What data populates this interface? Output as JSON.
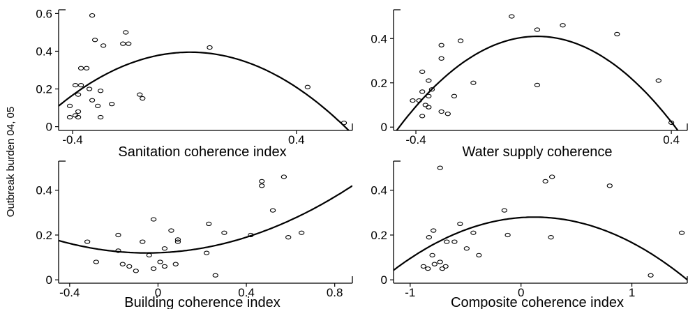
{
  "figure": {
    "ylabel": "Outbreak burden 04, 05"
  },
  "chart_data": [
    {
      "type": "scatter",
      "xlabel": "Sanitation coherence index",
      "xlim": [
        -0.45,
        0.6
      ],
      "ylim": [
        -0.02,
        0.62
      ],
      "xticks": [
        -0.4,
        0.4
      ],
      "xtick_labels": [
        "-0.4",
        "0.4"
      ],
      "yticks": [
        0,
        0.2,
        0.4,
        0.6
      ],
      "ytick_labels": [
        "0",
        "0.2",
        "0.4",
        "0.6"
      ],
      "points": [
        {
          "x": -0.33,
          "y": 0.59
        },
        {
          "x": -0.32,
          "y": 0.46
        },
        {
          "x": -0.29,
          "y": 0.43
        },
        {
          "x": -0.21,
          "y": 0.5
        },
        {
          "x": -0.22,
          "y": 0.44
        },
        {
          "x": -0.2,
          "y": 0.44
        },
        {
          "x": -0.37,
          "y": 0.31
        },
        {
          "x": -0.35,
          "y": 0.31
        },
        {
          "x": -0.39,
          "y": 0.22
        },
        {
          "x": -0.37,
          "y": 0.22
        },
        {
          "x": -0.34,
          "y": 0.2
        },
        {
          "x": -0.3,
          "y": 0.19
        },
        {
          "x": -0.38,
          "y": 0.17
        },
        {
          "x": -0.33,
          "y": 0.14
        },
        {
          "x": -0.31,
          "y": 0.11
        },
        {
          "x": -0.41,
          "y": 0.11
        },
        {
          "x": -0.38,
          "y": 0.08
        },
        {
          "x": -0.39,
          "y": 0.06
        },
        {
          "x": -0.41,
          "y": 0.05
        },
        {
          "x": -0.38,
          "y": 0.05
        },
        {
          "x": -0.3,
          "y": 0.05
        },
        {
          "x": -0.26,
          "y": 0.12
        },
        {
          "x": -0.16,
          "y": 0.17
        },
        {
          "x": -0.15,
          "y": 0.15
        },
        {
          "x": 0.09,
          "y": 0.42
        },
        {
          "x": 0.44,
          "y": 0.21
        },
        {
          "x": 0.57,
          "y": 0.02
        }
      ],
      "curve": {
        "vertex_x": 0.02,
        "vertex_y": 0.395,
        "through_x": 0.58,
        "through_y": -0.01
      }
    },
    {
      "type": "scatter",
      "xlabel": "Water supply coherence",
      "xlim": [
        -0.47,
        0.45
      ],
      "ylim": [
        -0.015,
        0.53
      ],
      "xticks": [
        -0.4,
        0.4
      ],
      "xtick_labels": [
        "-0.4",
        "0.4"
      ],
      "yticks": [
        0,
        0.2,
        0.4
      ],
      "ytick_labels": [
        "0",
        "0.2",
        "0.4"
      ],
      "points": [
        {
          "x": -0.1,
          "y": 0.5
        },
        {
          "x": 0.06,
          "y": 0.46
        },
        {
          "x": -0.02,
          "y": 0.44
        },
        {
          "x": 0.23,
          "y": 0.42
        },
        {
          "x": -0.26,
          "y": 0.39
        },
        {
          "x": -0.32,
          "y": 0.37
        },
        {
          "x": -0.32,
          "y": 0.31
        },
        {
          "x": -0.38,
          "y": 0.25
        },
        {
          "x": -0.36,
          "y": 0.21
        },
        {
          "x": -0.35,
          "y": 0.17
        },
        {
          "x": -0.38,
          "y": 0.16
        },
        {
          "x": -0.36,
          "y": 0.14
        },
        {
          "x": -0.39,
          "y": 0.12
        },
        {
          "x": -0.41,
          "y": 0.12
        },
        {
          "x": -0.37,
          "y": 0.1
        },
        {
          "x": -0.36,
          "y": 0.09
        },
        {
          "x": -0.32,
          "y": 0.07
        },
        {
          "x": -0.3,
          "y": 0.06
        },
        {
          "x": -0.38,
          "y": 0.05
        },
        {
          "x": -0.22,
          "y": 0.2
        },
        {
          "x": -0.02,
          "y": 0.19
        },
        {
          "x": -0.28,
          "y": 0.14
        },
        {
          "x": 0.36,
          "y": 0.21
        },
        {
          "x": 0.4,
          "y": 0.02
        }
      ],
      "curve": {
        "vertex_x": -0.02,
        "vertex_y": 0.41,
        "through_x": 0.415,
        "through_y": -0.005
      }
    },
    {
      "type": "scatter",
      "xlabel": "Building coherence index",
      "xlim": [
        -0.45,
        0.88
      ],
      "ylim": [
        -0.015,
        0.53
      ],
      "xticks": [
        -0.4,
        0,
        0.4,
        0.8
      ],
      "xtick_labels": [
        "-0.4",
        "0",
        "0.4",
        "0.8"
      ],
      "yticks": [
        0,
        0.2,
        0.4
      ],
      "ytick_labels": [
        "0",
        "0.2",
        "0.4"
      ],
      "points": [
        {
          "x": 0.57,
          "y": 0.46
        },
        {
          "x": 0.47,
          "y": 0.44
        },
        {
          "x": 0.47,
          "y": 0.42
        },
        {
          "x": 0.52,
          "y": 0.31
        },
        {
          "x": -0.02,
          "y": 0.27
        },
        {
          "x": 0.23,
          "y": 0.25
        },
        {
          "x": 0.06,
          "y": 0.22
        },
        {
          "x": 0.3,
          "y": 0.21
        },
        {
          "x": 0.65,
          "y": 0.21
        },
        {
          "x": -0.18,
          "y": 0.2
        },
        {
          "x": 0.42,
          "y": 0.2
        },
        {
          "x": 0.59,
          "y": 0.19
        },
        {
          "x": 0.09,
          "y": 0.18
        },
        {
          "x": 0.09,
          "y": 0.17
        },
        {
          "x": -0.32,
          "y": 0.17
        },
        {
          "x": -0.07,
          "y": 0.17
        },
        {
          "x": 0.03,
          "y": 0.14
        },
        {
          "x": -0.18,
          "y": 0.13
        },
        {
          "x": -0.04,
          "y": 0.11
        },
        {
          "x": 0.22,
          "y": 0.12
        },
        {
          "x": -0.28,
          "y": 0.08
        },
        {
          "x": 0.01,
          "y": 0.08
        },
        {
          "x": -0.16,
          "y": 0.07
        },
        {
          "x": -0.13,
          "y": 0.06
        },
        {
          "x": 0.08,
          "y": 0.07
        },
        {
          "x": 0.03,
          "y": 0.06
        },
        {
          "x": -0.02,
          "y": 0.05
        },
        {
          "x": -0.1,
          "y": 0.04
        },
        {
          "x": 0.26,
          "y": 0.02
        }
      ],
      "curve": {
        "vertex_x": -0.05,
        "vertex_y": 0.12,
        "through_x": 0.88,
        "through_y": 0.42
      }
    },
    {
      "type": "scatter",
      "xlabel": "Composite coherence index",
      "xlim": [
        -1.15,
        1.5
      ],
      "ylim": [
        -0.015,
        0.53
      ],
      "xticks": [
        -1,
        0,
        1
      ],
      "xtick_labels": [
        "-1",
        "0",
        "1"
      ],
      "yticks": [
        0,
        0.2,
        0.4
      ],
      "ytick_labels": [
        "0",
        "0.2",
        "0.4"
      ],
      "points": [
        {
          "x": -0.73,
          "y": 0.5
        },
        {
          "x": 0.28,
          "y": 0.46
        },
        {
          "x": 0.22,
          "y": 0.44
        },
        {
          "x": 0.8,
          "y": 0.42
        },
        {
          "x": -0.15,
          "y": 0.31
        },
        {
          "x": -0.55,
          "y": 0.25
        },
        {
          "x": -0.79,
          "y": 0.22
        },
        {
          "x": -0.43,
          "y": 0.21
        },
        {
          "x": 1.45,
          "y": 0.21
        },
        {
          "x": -0.12,
          "y": 0.2
        },
        {
          "x": -0.83,
          "y": 0.19
        },
        {
          "x": 0.27,
          "y": 0.19
        },
        {
          "x": -0.67,
          "y": 0.17
        },
        {
          "x": -0.6,
          "y": 0.17
        },
        {
          "x": -0.49,
          "y": 0.14
        },
        {
          "x": -0.38,
          "y": 0.11
        },
        {
          "x": -0.8,
          "y": 0.11
        },
        {
          "x": -0.73,
          "y": 0.08
        },
        {
          "x": -0.78,
          "y": 0.07
        },
        {
          "x": -0.88,
          "y": 0.06
        },
        {
          "x": -0.68,
          "y": 0.06
        },
        {
          "x": -0.84,
          "y": 0.05
        },
        {
          "x": -0.71,
          "y": 0.05
        },
        {
          "x": 1.17,
          "y": 0.02
        }
      ],
      "curve": {
        "vertex_x": 0.12,
        "vertex_y": 0.28,
        "through_x": 1.5,
        "through_y": 0.0
      }
    }
  ]
}
